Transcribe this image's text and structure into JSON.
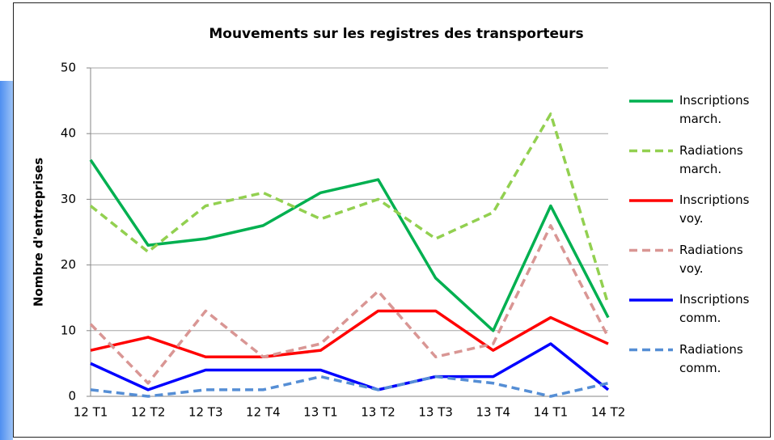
{
  "chart_data": {
    "type": "line",
    "title": "Mouvements sur les registres des transporteurs",
    "y_label": "Nombre d'entreprises",
    "categories": [
      "12 T1",
      "12 T2",
      "12 T3",
      "12 T4",
      "13 T1",
      "13 T2",
      "13 T3",
      "13 T4",
      "14 T1",
      "14 T2"
    ],
    "series": [
      {
        "name": "Inscriptions march.",
        "color": "#00b050",
        "dashed": false,
        "values": [
          36,
          23,
          24,
          26,
          31,
          33,
          18,
          10,
          29,
          12
        ]
      },
      {
        "name": "Radiations march.",
        "color": "#92d050",
        "dashed": true,
        "values": [
          29,
          22,
          29,
          31,
          27,
          30,
          24,
          28,
          43,
          14
        ]
      },
      {
        "name": "Inscriptions voy.",
        "color": "#ff0000",
        "dashed": false,
        "values": [
          7,
          9,
          6,
          6,
          7,
          13,
          13,
          7,
          12,
          8
        ]
      },
      {
        "name": "Radiations voy.",
        "color": "#d99694",
        "dashed": true,
        "values": [
          11,
          2,
          13,
          6,
          8,
          16,
          6,
          8,
          26,
          9
        ]
      },
      {
        "name": "Inscriptions comm.",
        "color": "#0000ff",
        "dashed": false,
        "values": [
          5,
          1,
          4,
          4,
          4,
          1,
          3,
          3,
          8,
          1
        ]
      },
      {
        "name": "Radiations comm.",
        "color": "#558ed5",
        "dashed": true,
        "values": [
          1,
          0,
          1,
          1,
          3,
          1,
          3,
          2,
          0,
          2
        ]
      }
    ],
    "ylim": [
      0,
      50
    ],
    "yticks": [
      0,
      10,
      20,
      30,
      40,
      50
    ],
    "grid": true,
    "legend": "right"
  }
}
